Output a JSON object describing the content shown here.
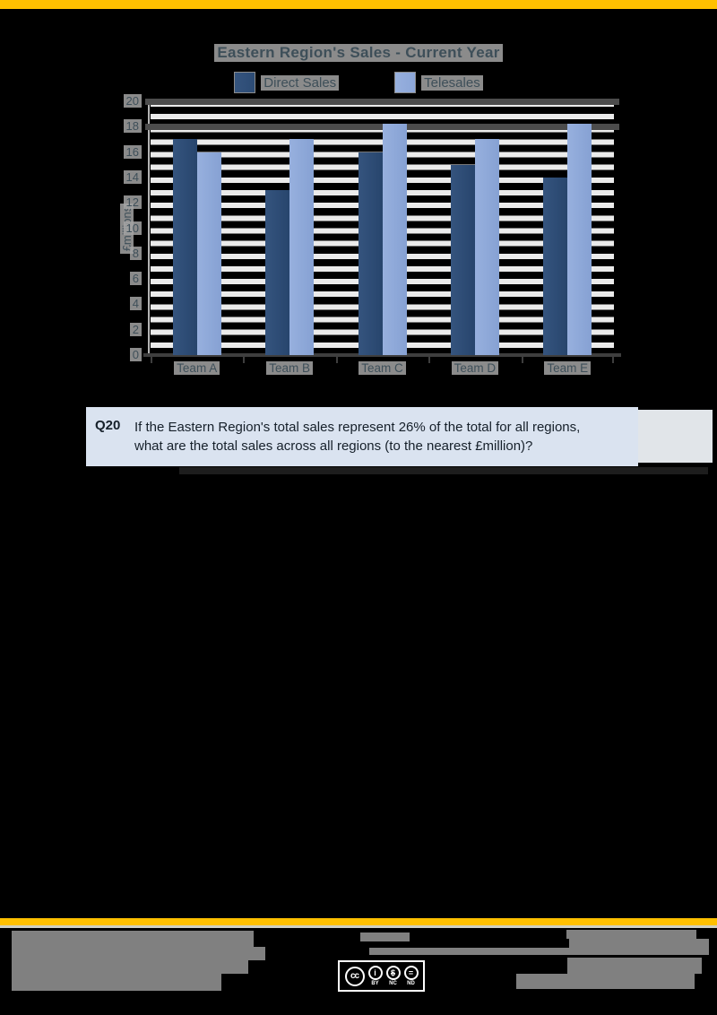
{
  "accent_color": "#FFC000",
  "chart_data": {
    "type": "bar",
    "title": "Eastern Region's Sales - Current Year",
    "categories": [
      "Team A",
      "Team B",
      "Team C",
      "Team D",
      "Team E"
    ],
    "series": [
      {
        "name": "Direct Sales",
        "color_start": "#35547e",
        "color": "#2c4b74",
        "values": [
          17,
          13,
          16,
          15,
          14
        ]
      },
      {
        "name": "Telesales",
        "color_start": "#97b0de",
        "color": "#8ca6d8",
        "values": [
          16,
          17,
          18.2,
          17,
          18.2
        ]
      }
    ],
    "xlabel": "",
    "ylabel": "£millions",
    "ylim": [
      0,
      20
    ],
    "yticks": [
      0,
      2,
      4,
      6,
      8,
      10,
      12,
      14,
      16,
      18,
      20
    ],
    "gridlines": true,
    "legend_position": "top"
  },
  "question": {
    "id": "Q20",
    "lines": [
      "If the Eastern Region's total sales represent 26% of the total for all regions,",
      "what are the total sales across all regions (to the nearest £million)?"
    ]
  },
  "footer": {
    "license": {
      "cc_glyph": "cc",
      "by_glyph": "i",
      "nc_glyph": "$",
      "nd_glyph": "=",
      "labels": [
        "BY",
        "NC",
        "ND"
      ]
    }
  }
}
